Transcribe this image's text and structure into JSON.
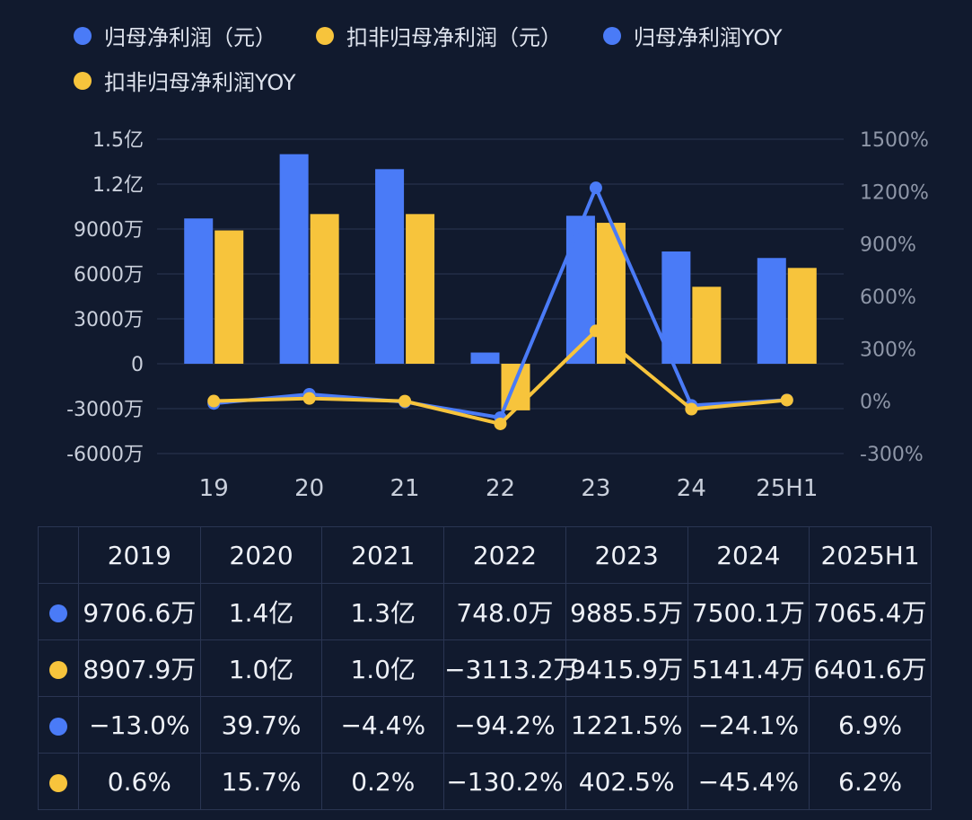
{
  "colors": {
    "blue": "#4a7bf7",
    "yellow": "#f7c43c",
    "grid": "#2a3552",
    "axis_text": "#c9cfdb",
    "right_axis_text": "#8f97a8"
  },
  "legend": [
    {
      "label": "归母净利润（元）",
      "color": "#4a7bf7"
    },
    {
      "label": "扣非归母净利润（元）",
      "color": "#f7c43c"
    },
    {
      "label": "归母净利润YOY",
      "color": "#4a7bf7"
    },
    {
      "label": "扣非归母净利润YOY",
      "color": "#f7c43c"
    }
  ],
  "chart_data": {
    "type": "bar",
    "categories": [
      "19",
      "20",
      "21",
      "22",
      "23",
      "24",
      "25H1"
    ],
    "left_axis": {
      "ticks": [
        "1.5亿",
        "1.2亿",
        "9000万",
        "6000万",
        "3000万",
        "0",
        "-3000万",
        "-6000万"
      ],
      "ylim": [
        -6000,
        15000
      ],
      "unit": "万"
    },
    "right_axis": {
      "ticks": [
        "1500%",
        "1200%",
        "900%",
        "600%",
        "300%",
        "0%",
        "-300%"
      ],
      "ylim": [
        -300,
        1500
      ]
    },
    "series": [
      {
        "name": "归母净利润（元）",
        "kind": "bar",
        "axis": "left",
        "color": "#4a7bf7",
        "values": [
          9706.6,
          14000,
          13000,
          748.0,
          9885.5,
          7500.1,
          7065.4
        ]
      },
      {
        "name": "扣非归母净利润（元）",
        "kind": "bar",
        "axis": "left",
        "color": "#f7c43c",
        "values": [
          8907.9,
          10000,
          10000,
          -3113.2,
          9415.9,
          5141.4,
          6401.6
        ]
      },
      {
        "name": "归母净利润YOY",
        "kind": "line",
        "axis": "right",
        "color": "#4a7bf7",
        "values": [
          -13.0,
          39.7,
          -4.4,
          -94.2,
          1221.5,
          -24.1,
          6.9
        ]
      },
      {
        "name": "扣非归母净利润YOY",
        "kind": "line",
        "axis": "right",
        "color": "#f7c43c",
        "values": [
          0.6,
          15.7,
          0.2,
          -130.2,
          402.5,
          -45.4,
          6.2
        ]
      }
    ]
  },
  "table": {
    "headers": [
      "2019",
      "2020",
      "2021",
      "2022",
      "2023",
      "2024",
      "2025H1"
    ],
    "rows": [
      {
        "color": "#4a7bf7",
        "cells": [
          "9706.6万",
          "1.4亿",
          "1.3亿",
          "748.0万",
          "9885.5万",
          "7500.1万",
          "7065.4万"
        ]
      },
      {
        "color": "#f7c43c",
        "cells": [
          "8907.9万",
          "1.0亿",
          "1.0亿",
          "−3113.2万",
          "9415.9万",
          "5141.4万",
          "6401.6万"
        ]
      },
      {
        "color": "#4a7bf7",
        "cells": [
          "−13.0%",
          "39.7%",
          "−4.4%",
          "−94.2%",
          "1221.5%",
          "−24.1%",
          "6.9%"
        ]
      },
      {
        "color": "#f7c43c",
        "cells": [
          "0.6%",
          "15.7%",
          "0.2%",
          "−130.2%",
          "402.5%",
          "−45.4%",
          "6.2%"
        ]
      }
    ]
  }
}
